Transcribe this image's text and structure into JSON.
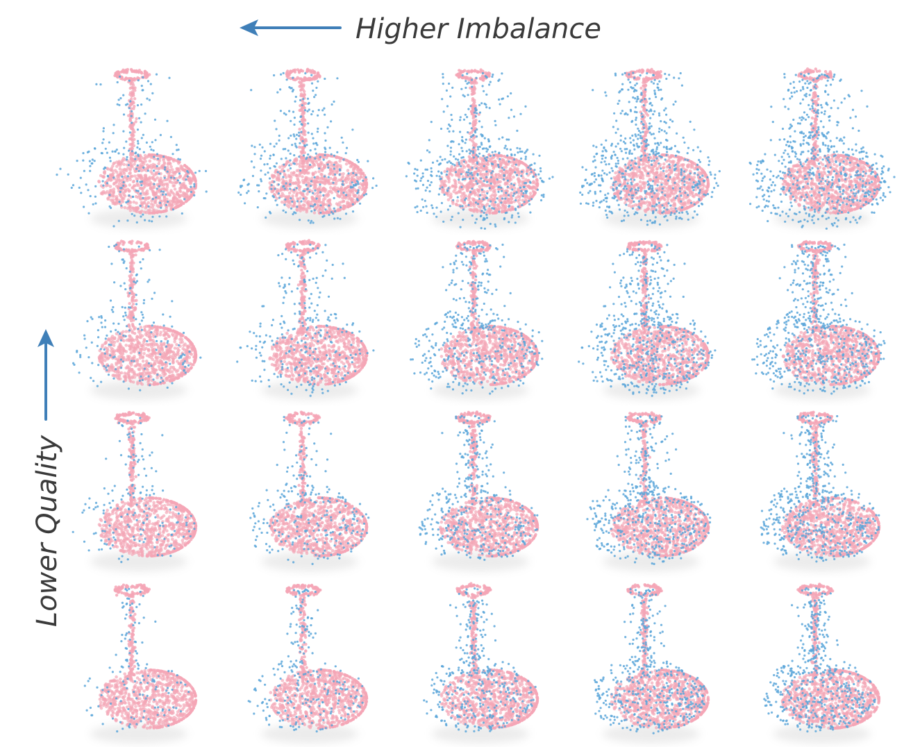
{
  "labels": {
    "top": "Higher Imbalance",
    "side": "Lower Quality"
  },
  "colors": {
    "real_points": "#f4a6b6",
    "generated_points": "#5aa6d9",
    "arrow": "#3f7fb8",
    "label_text": "#3a3a3a"
  },
  "grid": {
    "rows": 4,
    "cols": 5,
    "panels": [
      [
        {
          "blue_fraction": 0.25,
          "spread": 1.0
        },
        {
          "blue_fraction": 0.35,
          "spread": 1.0
        },
        {
          "blue_fraction": 0.5,
          "spread": 1.0
        },
        {
          "blue_fraction": 0.65,
          "spread": 1.0
        },
        {
          "blue_fraction": 0.7,
          "spread": 1.0
        }
      ],
      [
        {
          "blue_fraction": 0.2,
          "spread": 0.75
        },
        {
          "blue_fraction": 0.3,
          "spread": 0.75
        },
        {
          "blue_fraction": 0.45,
          "spread": 0.75
        },
        {
          "blue_fraction": 0.6,
          "spread": 0.75
        },
        {
          "blue_fraction": 0.65,
          "spread": 0.75
        }
      ],
      [
        {
          "blue_fraction": 0.18,
          "spread": 0.5
        },
        {
          "blue_fraction": 0.28,
          "spread": 0.5
        },
        {
          "blue_fraction": 0.42,
          "spread": 0.5
        },
        {
          "blue_fraction": 0.55,
          "spread": 0.5
        },
        {
          "blue_fraction": 0.6,
          "spread": 0.5
        }
      ],
      [
        {
          "blue_fraction": 0.15,
          "spread": 0.3
        },
        {
          "blue_fraction": 0.25,
          "spread": 0.3
        },
        {
          "blue_fraction": 0.4,
          "spread": 0.3
        },
        {
          "blue_fraction": 0.5,
          "spread": 0.3
        },
        {
          "blue_fraction": 0.55,
          "spread": 0.3
        }
      ]
    ]
  }
}
